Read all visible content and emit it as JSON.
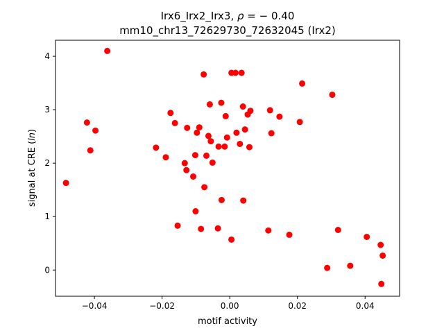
{
  "chart_data": {
    "type": "scatter",
    "title_line1_prefix": "Irx6_Irx2_Irx3, ",
    "title_line1_rho": "ρ",
    "title_line1_suffix": " = − 0.40",
    "title_line2": "mm10_chr13_72629730_72632045 (Irx2)",
    "xlabel": "motif activity",
    "ylabel_prefix": "signal at CRE (",
    "ylabel_italic": "ln",
    "ylabel_suffix": ")",
    "xlim": [
      -0.0515,
      0.0502
    ],
    "ylim": [
      -0.49,
      4.3
    ],
    "xticks": [
      {
        "value": -0.04,
        "label": "−0.04"
      },
      {
        "value": -0.02,
        "label": "−0.02"
      },
      {
        "value": 0.0,
        "label": "0.00"
      },
      {
        "value": 0.02,
        "label": "0.02"
      },
      {
        "value": 0.04,
        "label": "0.04"
      }
    ],
    "yticks": [
      {
        "value": 0,
        "label": "0"
      },
      {
        "value": 1,
        "label": "1"
      },
      {
        "value": 2,
        "label": "2"
      },
      {
        "value": 3,
        "label": "3"
      },
      {
        "value": 4,
        "label": "4"
      }
    ],
    "grid": false,
    "marker_color": "#ff0000",
    "points": [
      {
        "x": -0.0484,
        "y": 1.63
      },
      {
        "x": -0.0422,
        "y": 2.76
      },
      {
        "x": -0.0412,
        "y": 2.24
      },
      {
        "x": -0.0397,
        "y": 2.61
      },
      {
        "x": -0.0362,
        "y": 4.1
      },
      {
        "x": -0.0218,
        "y": 2.29
      },
      {
        "x": -0.0189,
        "y": 2.11
      },
      {
        "x": -0.0175,
        "y": 2.94
      },
      {
        "x": -0.0162,
        "y": 2.75
      },
      {
        "x": -0.0154,
        "y": 0.83
      },
      {
        "x": -0.0133,
        "y": 2.0
      },
      {
        "x": -0.0128,
        "y": 1.87
      },
      {
        "x": -0.0126,
        "y": 2.66
      },
      {
        "x": -0.0108,
        "y": 1.75
      },
      {
        "x": -0.0102,
        "y": 2.15
      },
      {
        "x": -0.0101,
        "y": 1.1
      },
      {
        "x": -0.0097,
        "y": 2.57
      },
      {
        "x": -0.009,
        "y": 2.67
      },
      {
        "x": -0.0085,
        "y": 0.77
      },
      {
        "x": -0.0077,
        "y": 3.66
      },
      {
        "x": -0.0075,
        "y": 1.55
      },
      {
        "x": -0.0069,
        "y": 2.14
      },
      {
        "x": -0.0063,
        "y": 2.51
      },
      {
        "x": -0.0059,
        "y": 3.1
      },
      {
        "x": -0.0056,
        "y": 2.41
      },
      {
        "x": -0.0051,
        "y": 2.01
      },
      {
        "x": -0.0035,
        "y": 0.78
      },
      {
        "x": -0.0033,
        "y": 2.31
      },
      {
        "x": -0.0025,
        "y": 3.13
      },
      {
        "x": -0.0024,
        "y": 1.31
      },
      {
        "x": -0.0015,
        "y": 2.31
      },
      {
        "x": -0.0012,
        "y": 2.88
      },
      {
        "x": -0.0008,
        "y": 2.48
      },
      {
        "x": 0.0005,
        "y": 3.69
      },
      {
        "x": 0.0005,
        "y": 0.57
      },
      {
        "x": 0.0017,
        "y": 3.69
      },
      {
        "x": 0.002,
        "y": 2.57
      },
      {
        "x": 0.003,
        "y": 2.36
      },
      {
        "x": 0.0035,
        "y": 3.69
      },
      {
        "x": 0.0039,
        "y": 3.06
      },
      {
        "x": 0.004,
        "y": 1.3
      },
      {
        "x": 0.0045,
        "y": 2.63
      },
      {
        "x": 0.0053,
        "y": 2.91
      },
      {
        "x": 0.0058,
        "y": 2.3
      },
      {
        "x": 0.0061,
        "y": 2.98
      },
      {
        "x": 0.0114,
        "y": 0.74
      },
      {
        "x": 0.0119,
        "y": 2.99
      },
      {
        "x": 0.0123,
        "y": 2.56
      },
      {
        "x": 0.0147,
        "y": 2.87
      },
      {
        "x": 0.0176,
        "y": 0.66
      },
      {
        "x": 0.0207,
        "y": 2.77
      },
      {
        "x": 0.0214,
        "y": 3.49
      },
      {
        "x": 0.0288,
        "y": 0.04
      },
      {
        "x": 0.0303,
        "y": 3.28
      },
      {
        "x": 0.032,
        "y": 0.75
      },
      {
        "x": 0.0356,
        "y": 0.08
      },
      {
        "x": 0.0405,
        "y": 0.62
      },
      {
        "x": 0.0446,
        "y": 0.47
      },
      {
        "x": 0.0448,
        "y": -0.26
      },
      {
        "x": 0.0452,
        "y": 0.27
      }
    ]
  }
}
